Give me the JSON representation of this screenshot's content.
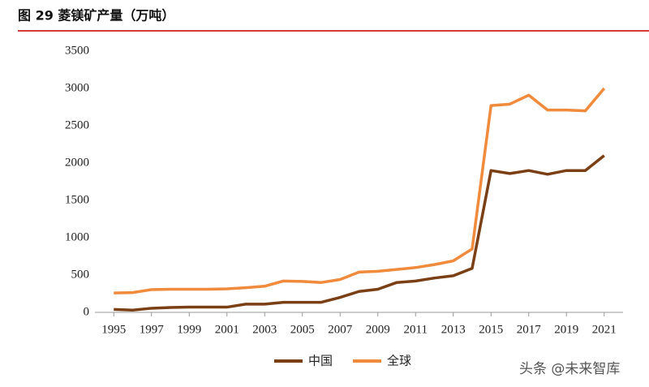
{
  "chart_data": {
    "type": "line",
    "title": "图 29 菱镁矿产量（万吨）",
    "x": [
      1995,
      1996,
      1997,
      1998,
      1999,
      2000,
      2001,
      2002,
      2003,
      2004,
      2005,
      2006,
      2007,
      2008,
      2009,
      2010,
      2011,
      2012,
      2013,
      2014,
      2015,
      2016,
      2017,
      2018,
      2019,
      2020,
      2021
    ],
    "series": [
      {
        "name": "中国",
        "color": "#7b3f16",
        "values": [
          40,
          30,
          55,
          65,
          70,
          70,
          70,
          110,
          110,
          135,
          135,
          135,
          200,
          280,
          310,
          400,
          420,
          460,
          490,
          590,
          1900,
          1860,
          1900,
          1850,
          1900,
          1900,
          2100
        ]
      },
      {
        "name": "全球",
        "color": "#f08a3c",
        "values": [
          260,
          265,
          305,
          310,
          310,
          310,
          315,
          330,
          350,
          420,
          415,
          400,
          440,
          540,
          550,
          575,
          600,
          640,
          690,
          850,
          2770,
          2790,
          2910,
          2710,
          2710,
          2700,
          3000
        ]
      }
    ],
    "xlim": [
      1994,
      2022
    ],
    "xticks": [
      1995,
      1997,
      1999,
      2001,
      2003,
      2005,
      2007,
      2009,
      2011,
      2013,
      2015,
      2017,
      2019,
      2021
    ],
    "ylim": [
      0,
      3500
    ],
    "yticks": [
      0,
      500,
      1000,
      1500,
      2000,
      2500,
      3000,
      3500
    ],
    "legend": "bottom",
    "watermark": "头条 @未来智库"
  }
}
